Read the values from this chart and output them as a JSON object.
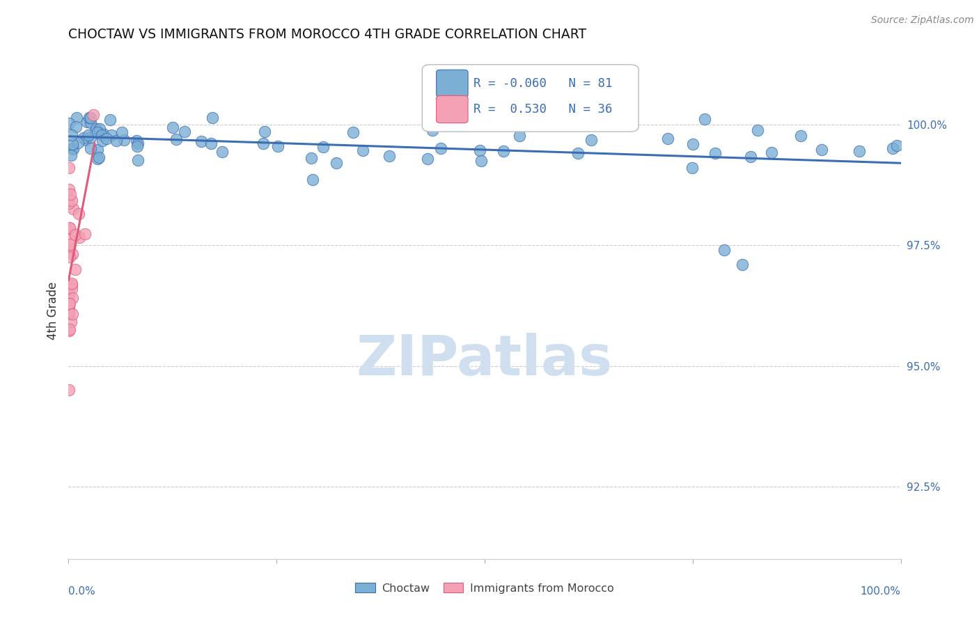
{
  "title": "CHOCTAW VS IMMIGRANTS FROM MOROCCO 4TH GRADE CORRELATION CHART",
  "source": "Source: ZipAtlas.com",
  "ylabel": "4th Grade",
  "xlim": [
    0.0,
    100.0
  ],
  "ylim": [
    91.0,
    101.3
  ],
  "yticks": [
    92.5,
    95.0,
    97.5,
    100.0
  ],
  "ytick_labels": [
    "92.5%",
    "95.0%",
    "97.5%",
    "100.0%"
  ],
  "blue_color": "#7BAFD4",
  "pink_color": "#F4A0B5",
  "trend_blue": "#3B6DB3",
  "trend_pink": "#E05A7A",
  "watermark_color": "#D0DFF0",
  "background_color": "#FFFFFF",
  "grid_color": "#CCCCCC",
  "tick_color": "#3B6DB3"
}
